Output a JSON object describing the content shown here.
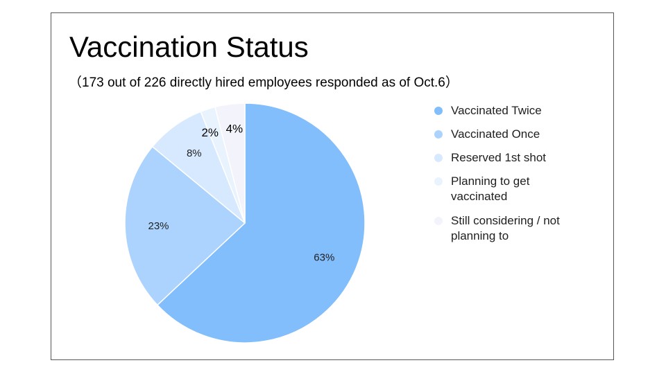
{
  "title": "Vaccination Status",
  "subtitle": "（173 out of 226 directly hired employees responded as of Oct.6）",
  "chart_data": {
    "type": "pie",
    "series": [
      {
        "name": "Vaccinated Twice",
        "value": 63,
        "label": "63%",
        "color": "#82bdfc"
      },
      {
        "name": "Vaccinated Once",
        "value": 23,
        "label": "23%",
        "color": "#abd3fd"
      },
      {
        "name": "Reserved 1st shot",
        "value": 8,
        "label": "8%",
        "color": "#d7e9fe"
      },
      {
        "name": "Planning to get vaccinated",
        "value": 2,
        "label": "2%",
        "color": "#e9f3fe"
      },
      {
        "name": "Still considering / not planning to",
        "value": 4,
        "label": "4%",
        "color": "#f3f3fc"
      }
    ],
    "legend_position": "right"
  },
  "legend": [
    {
      "label": "Vaccinated Twice",
      "color": "#82bdfc"
    },
    {
      "label": "Vaccinated Once",
      "color": "#abd3fd"
    },
    {
      "label": "Reserved 1st shot",
      "color": "#d7e9fe"
    },
    {
      "label": "Planning to get vaccinated",
      "color": "#e9f3fe"
    },
    {
      "label": "Still considering / not planning to",
      "color": "#f3f3fc"
    }
  ]
}
